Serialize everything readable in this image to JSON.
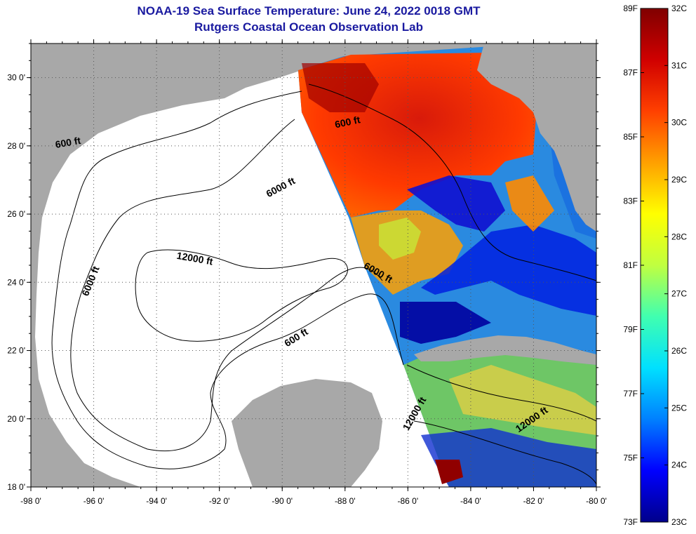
{
  "header": {
    "title": "NOAA-19 Sea Surface Temperature:  June 24, 2022 0018 GMT",
    "subtitle": "Rutgers Coastal Ocean Observation Lab"
  },
  "map": {
    "lon_range": [
      -98,
      -80
    ],
    "lat_range": [
      18,
      31
    ],
    "lon_ticks": [
      {
        "value": -98,
        "label": "-98 0'"
      },
      {
        "value": -96,
        "label": "-96 0'"
      },
      {
        "value": -94,
        "label": "-94 0'"
      },
      {
        "value": -92,
        "label": "-92 0'"
      },
      {
        "value": -90,
        "label": "-90 0'"
      },
      {
        "value": -88,
        "label": "-88 0'"
      },
      {
        "value": -86,
        "label": "-86 0'"
      },
      {
        "value": -84,
        "label": "-84 0'"
      },
      {
        "value": -82,
        "label": "-82 0'"
      },
      {
        "value": -80,
        "label": "-80 0'"
      }
    ],
    "lat_ticks": [
      {
        "value": 18,
        "label": "18 0'"
      },
      {
        "value": 20,
        "label": "20 0'"
      },
      {
        "value": 22,
        "label": "22 0'"
      },
      {
        "value": 24,
        "label": "24 0'"
      },
      {
        "value": 26,
        "label": "26 0'"
      },
      {
        "value": 28,
        "label": "28 0'"
      },
      {
        "value": 30,
        "label": "30 0'"
      }
    ],
    "contour_labels": [
      {
        "text": "600 ft",
        "lon": -96.8,
        "lat": 28.0,
        "angle": -10
      },
      {
        "text": "6000 ft",
        "lon": -90.0,
        "lat": 26.7,
        "angle": -28
      },
      {
        "text": "12000 ft",
        "lon": -92.8,
        "lat": 24.6,
        "angle": 10
      },
      {
        "text": "6000 ft",
        "lon": -87.0,
        "lat": 24.2,
        "angle": 30
      },
      {
        "text": "6000 ft",
        "lon": -96.0,
        "lat": 24.0,
        "angle": -68
      },
      {
        "text": "600 ft",
        "lon": -89.5,
        "lat": 22.3,
        "angle": -32
      },
      {
        "text": "600 ft",
        "lon": -87.9,
        "lat": 28.6,
        "angle": -12
      },
      {
        "text": "12000 ft",
        "lon": -85.7,
        "lat": 20.1,
        "angle": -60
      },
      {
        "text": "12000 ft",
        "lon": -82.0,
        "lat": 19.9,
        "angle": -35
      }
    ],
    "colors": {
      "land": "#a8a8a8",
      "no_data": "#ffffff",
      "contour": "#000000"
    }
  },
  "colorbar": {
    "celsius_range": [
      23,
      32
    ],
    "fahrenheit_range": [
      73,
      89
    ],
    "celsius_labels": [
      "32C",
      "31C",
      "30C",
      "29C",
      "28C",
      "27C",
      "26C",
      "25C",
      "24C",
      "23C"
    ],
    "fahrenheit_labels": [
      "89F",
      "87F",
      "85F",
      "83F",
      "81F",
      "79F",
      "77F",
      "75F",
      "73F"
    ],
    "stops": [
      "#00008b",
      "#0000ff",
      "#0080ff",
      "#00e0ff",
      "#40ffb0",
      "#c0ff40",
      "#ffff00",
      "#ffa000",
      "#ff4000",
      "#d00000",
      "#800000"
    ]
  }
}
